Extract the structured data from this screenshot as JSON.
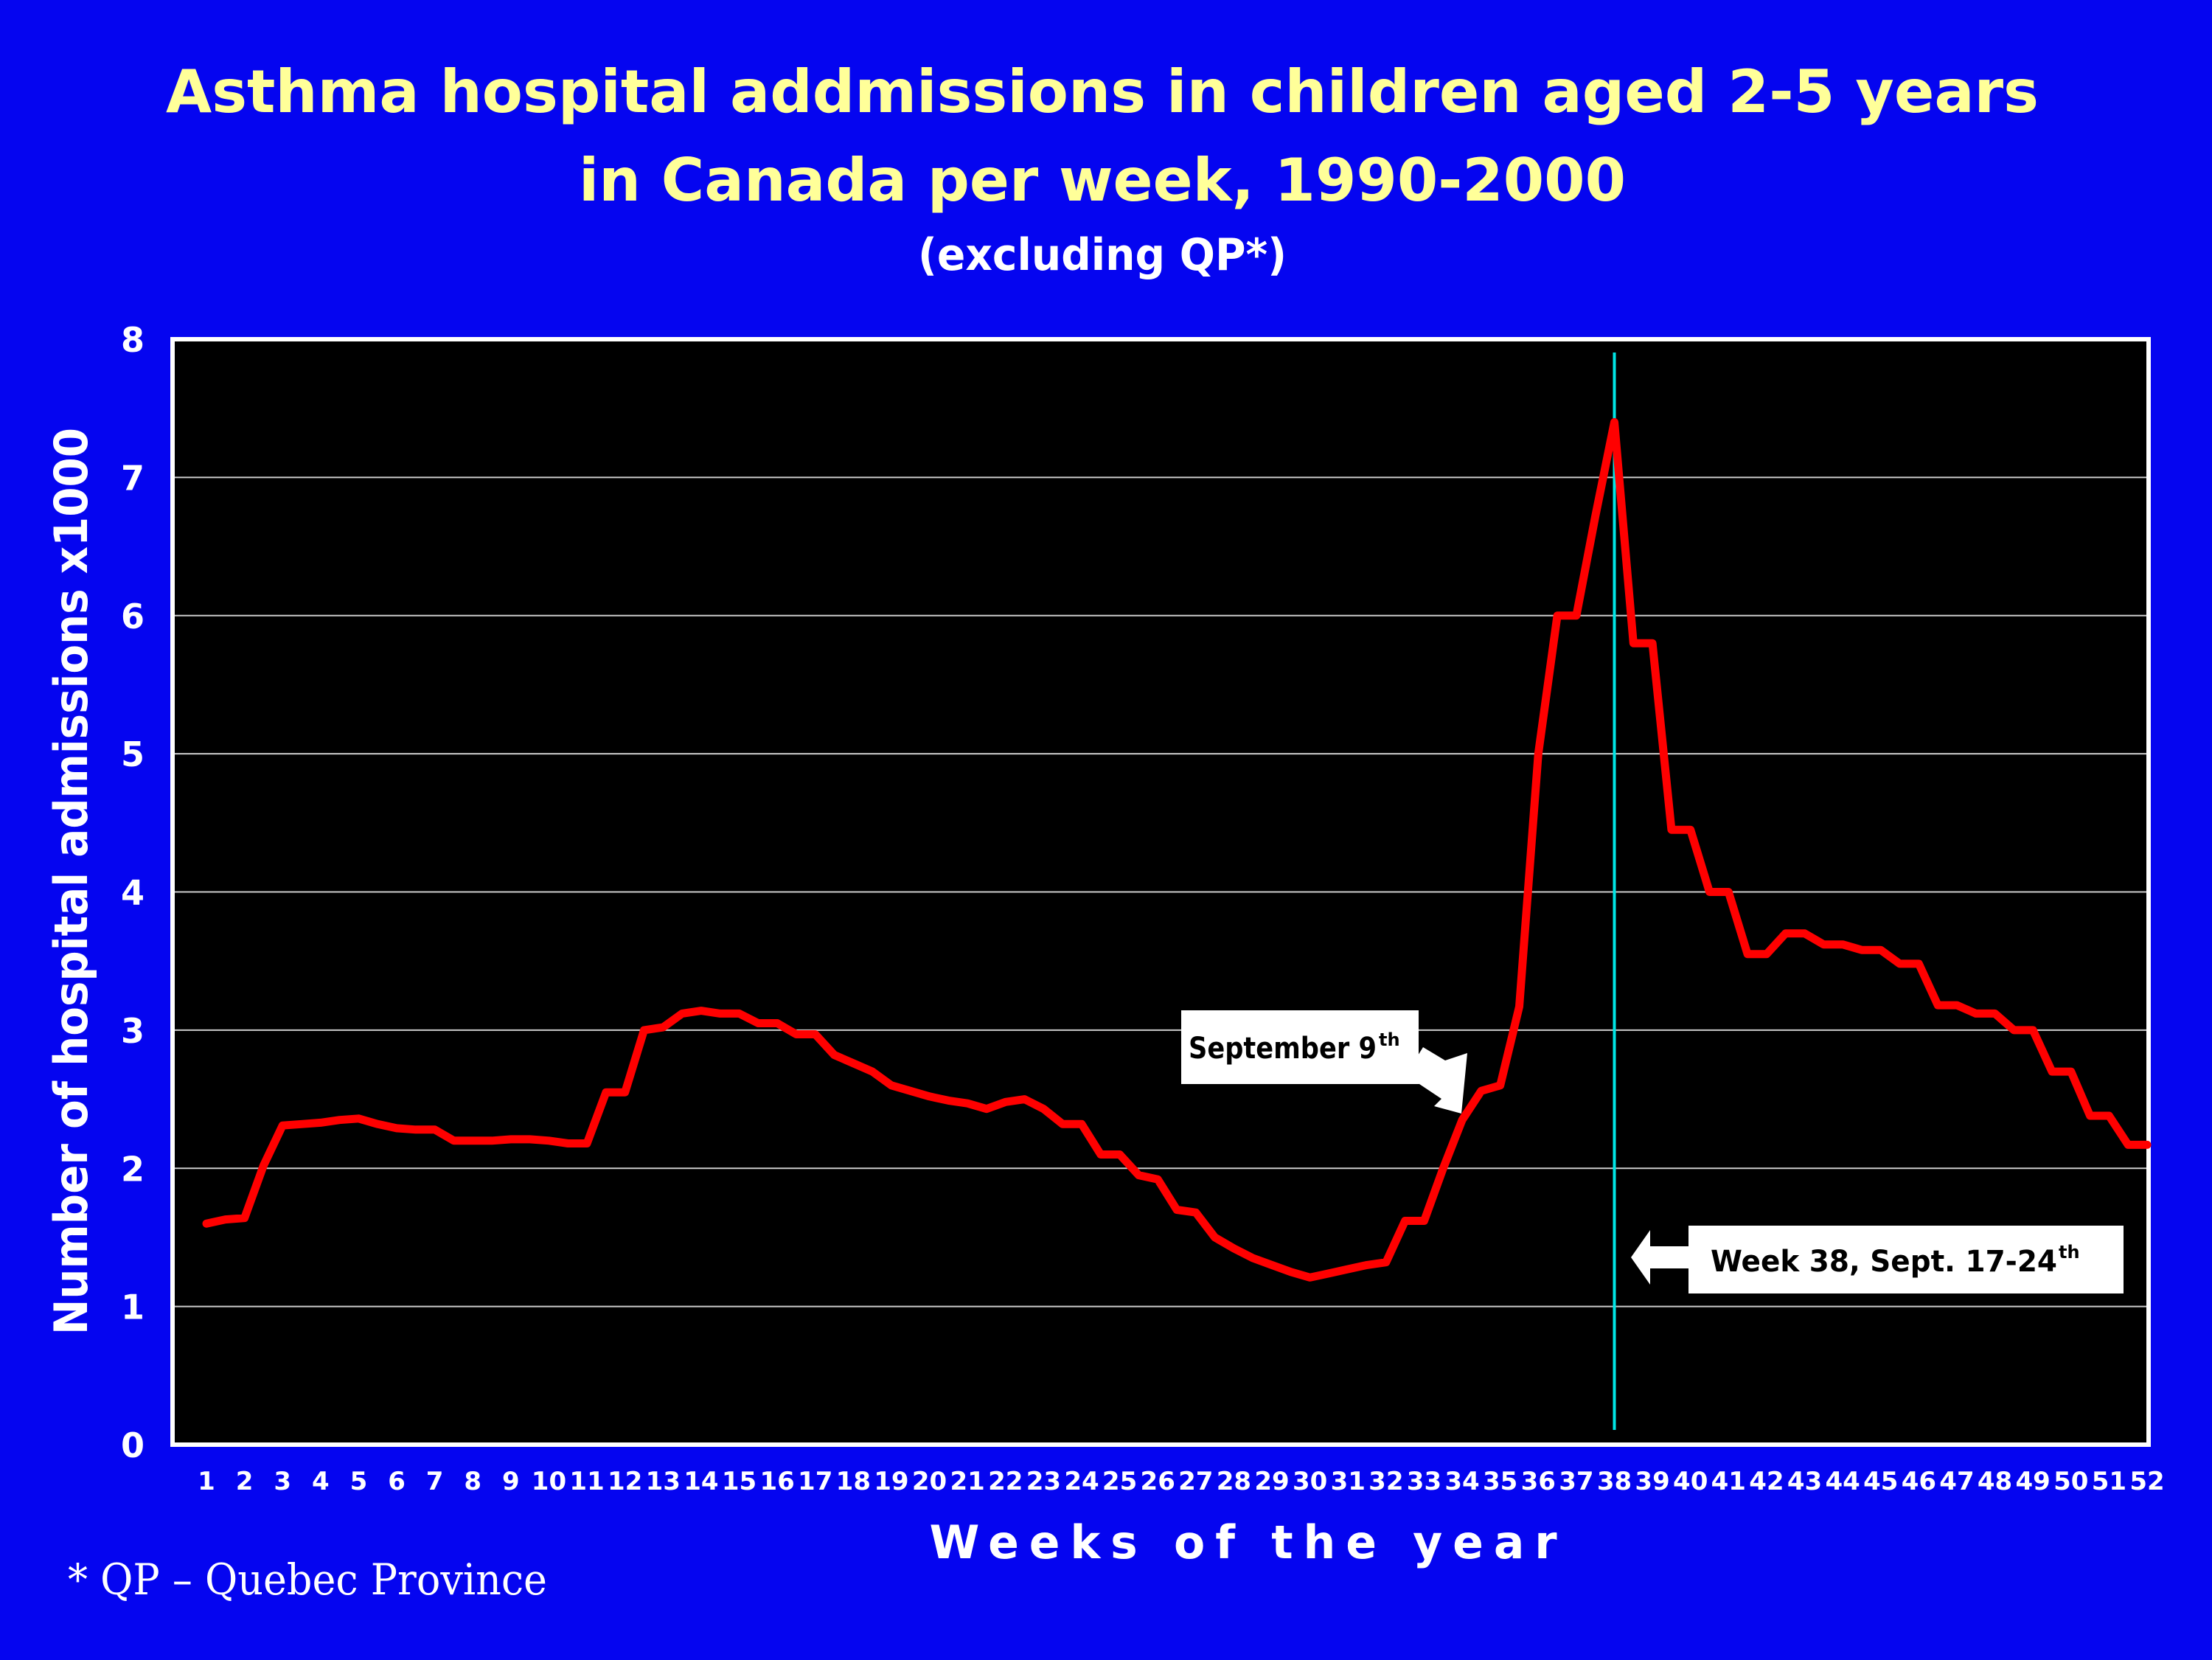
{
  "chart_data": {
    "type": "line",
    "title_line1": "Asthma hospital addmissions in children aged 2-5 years",
    "title_line2": "in Canada per week, 1990-2000",
    "subtitle": "(excluding QP*)",
    "ylabel": "Number of hospital admissions  x1000",
    "xlabel": "Weeks of the year",
    "footnote": "* QP – Quebec Province",
    "ylim": [
      0,
      8
    ],
    "yticks": [
      "0",
      "1",
      "2",
      "3",
      "4",
      "5",
      "6",
      "7",
      "8"
    ],
    "xticks": [
      "1",
      "2",
      "3",
      "4",
      "5",
      "6",
      "7",
      "8",
      "9",
      "10",
      "11",
      "12",
      "13",
      "14",
      "15",
      "16",
      "17",
      "18",
      "19",
      "20",
      "21",
      "22",
      "23",
      "24",
      "25",
      "26",
      "27",
      "28",
      "29",
      "30",
      "31",
      "32",
      "33",
      "34",
      "35",
      "36",
      "37",
      "38",
      "39",
      "40",
      "41",
      "42",
      "43",
      "44",
      "45",
      "46",
      "47",
      "48",
      "49",
      "50",
      "51",
      "52"
    ],
    "grid": "horizontal",
    "line_color": "#ff0000",
    "marker_color": "#00e5e5",
    "plot_background": "#000000",
    "page_background": "#0505f0",
    "series": [
      {
        "x": [
          1,
          1.5,
          2,
          2.5,
          3,
          3.5,
          4,
          4.5,
          5,
          5.5,
          6,
          6.5,
          7,
          7.5,
          8,
          8.5,
          9,
          9.5,
          10,
          10.5,
          11,
          11.5,
          12,
          12.5,
          13,
          13.5,
          14,
          14.5,
          15,
          15.5,
          16,
          16.5,
          17,
          17.5,
          18,
          18.5,
          19,
          19.5,
          20,
          20.5,
          21,
          21.5,
          22,
          22.5,
          23,
          23.5,
          24,
          24.5,
          25,
          25.5,
          26,
          26.5,
          27,
          27.5,
          28,
          28.5,
          29,
          29.5,
          30,
          30.5,
          31,
          31.5,
          32,
          32.5,
          33,
          33.5,
          34,
          34.5,
          35,
          35.5,
          36,
          36.5,
          37,
          37.5,
          38,
          38.5,
          39,
          39.5,
          40,
          40.5,
          41,
          41.5,
          42,
          42.5,
          43,
          43.5,
          44,
          44.5,
          45,
          45.5,
          46,
          46.5,
          47,
          47.5,
          48,
          48.5,
          49,
          49.5,
          50,
          50.5,
          51,
          51.5,
          52
        ],
        "values": [
          1.6,
          1.63,
          1.64,
          2.02,
          2.31,
          2.32,
          2.33,
          2.35,
          2.36,
          2.32,
          2.29,
          2.28,
          2.28,
          2.2,
          2.2,
          2.2,
          2.21,
          2.21,
          2.2,
          2.18,
          2.18,
          2.55,
          2.55,
          3.0,
          3.02,
          3.12,
          3.14,
          3.12,
          3.12,
          3.05,
          3.05,
          2.97,
          2.97,
          2.82,
          2.76,
          2.7,
          2.6,
          2.56,
          2.52,
          2.49,
          2.47,
          2.43,
          2.48,
          2.5,
          2.43,
          2.32,
          2.32,
          2.1,
          2.1,
          1.95,
          1.92,
          1.7,
          1.68,
          1.5,
          1.42,
          1.35,
          1.3,
          1.25,
          1.21,
          1.24,
          1.27,
          1.3,
          1.32,
          1.62,
          1.62,
          2.0,
          2.35,
          2.56,
          2.6,
          3.17,
          5.0,
          6.0,
          6.0,
          6.72,
          7.4,
          5.8,
          5.8,
          4.45,
          4.45,
          4.0,
          4.0,
          3.55,
          3.55,
          3.7,
          3.7,
          3.62,
          3.62,
          3.58,
          3.58,
          3.48,
          3.48,
          3.18,
          3.18,
          3.12,
          3.12,
          3.0,
          3.0,
          2.7,
          2.7,
          2.38,
          2.38,
          2.17,
          2.17
        ]
      }
    ],
    "reference_line": {
      "x": 38
    },
    "annotations": [
      {
        "text": "September 9",
        "sup": "th"
      },
      {
        "text": "Week 38, Sept. 17-24",
        "sup": "th"
      }
    ]
  }
}
